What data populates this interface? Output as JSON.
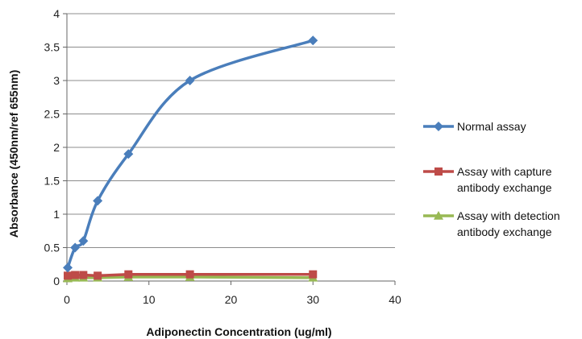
{
  "chart_data": {
    "type": "line",
    "xlabel": "Adiponectin Concentration (ug/ml)",
    "ylabel": "Absorbance (450nm/ref 655nm)",
    "xlim": [
      0,
      40
    ],
    "ylim": [
      0,
      4
    ],
    "x_ticks": [
      "0",
      "10",
      "20",
      "30",
      "40"
    ],
    "y_ticks": [
      "0",
      "0.5",
      "1",
      "1.5",
      "2",
      "2.5",
      "3",
      "3.5",
      "4"
    ],
    "grid": "horizontal",
    "legend_position": "right",
    "series": [
      {
        "name": "Normal assay",
        "legend_lines": [
          "Normal assay"
        ],
        "color": "#4a7ebb",
        "marker": "diamond",
        "smooth": true,
        "x": [
          0.1,
          1,
          2,
          3.75,
          7.5,
          15,
          30
        ],
        "y": [
          0.2,
          0.5,
          0.6,
          1.2,
          1.9,
          3.0,
          3.6
        ]
      },
      {
        "name": "Assay with capture antibody exchange",
        "legend_lines": [
          "Assay with capture",
          "antibody exchange"
        ],
        "color": "#be4b48",
        "marker": "square",
        "smooth": false,
        "x": [
          0.1,
          1,
          2,
          3.75,
          7.5,
          15,
          30
        ],
        "y": [
          0.08,
          0.09,
          0.09,
          0.08,
          0.1,
          0.1,
          0.1
        ]
      },
      {
        "name": "Assay with detection antibody exchange",
        "legend_lines": [
          "Assay with detection",
          "antibody exchange"
        ],
        "color": "#98b954",
        "marker": "triangle",
        "smooth": false,
        "x": [
          0.1,
          1,
          2,
          3.75,
          7.5,
          15,
          30
        ],
        "y": [
          0.04,
          0.05,
          0.05,
          0.05,
          0.06,
          0.06,
          0.05
        ]
      }
    ]
  }
}
